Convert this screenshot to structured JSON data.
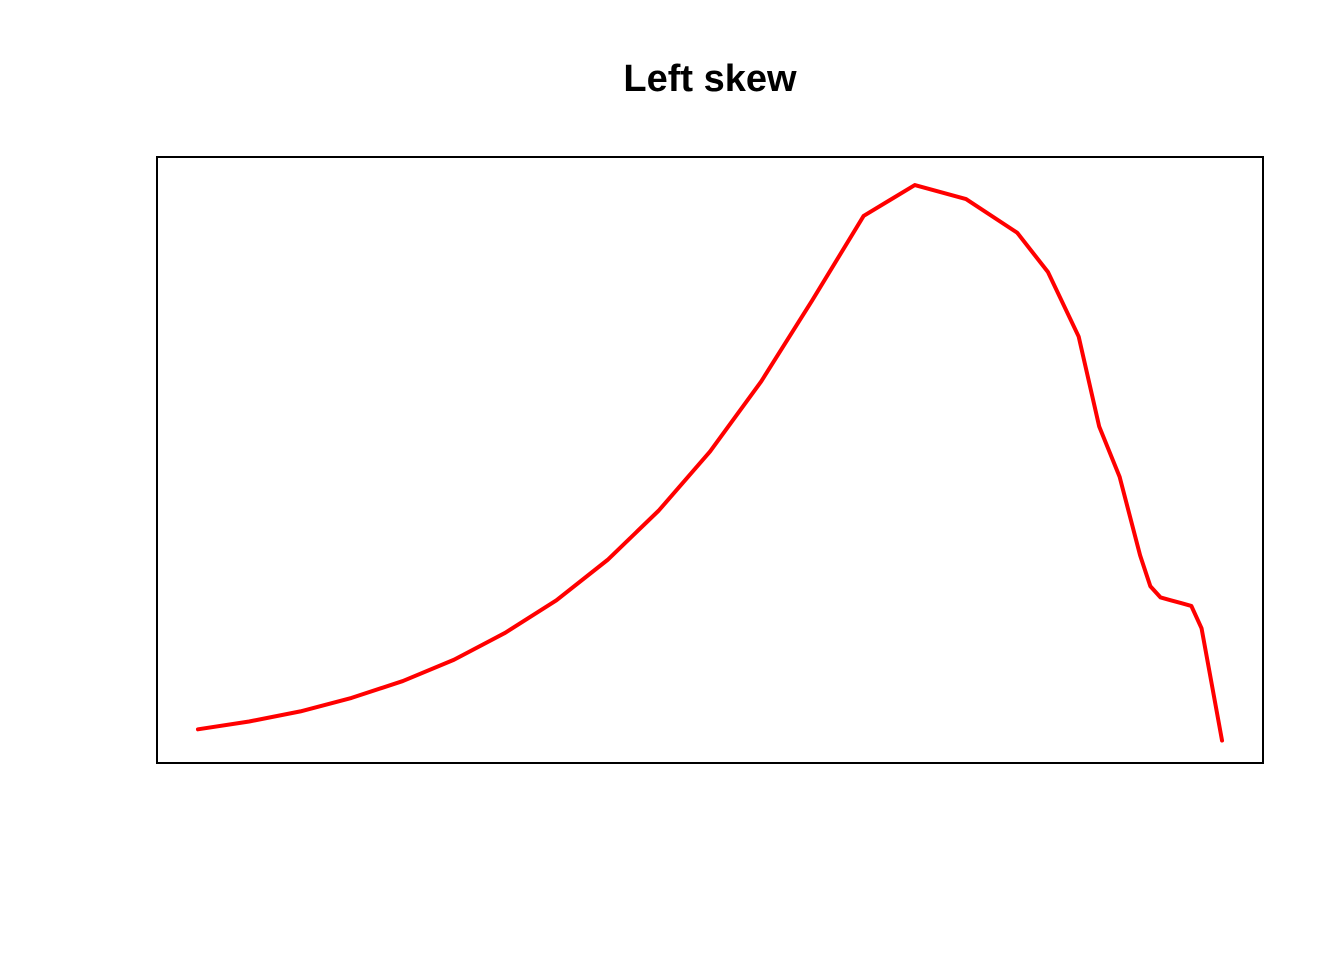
{
  "chart_data": {
    "type": "line",
    "title": "Left skew",
    "xlabel": "",
    "ylabel": "",
    "axes_visible": false,
    "grid": false,
    "legend": "none",
    "frame": true,
    "xlim": [
      -0.04,
      1.04
    ],
    "ylim": [
      -0.04,
      1.04
    ],
    "series": [
      {
        "color": "#ff0000",
        "x": [
          0.0,
          0.05,
          0.1,
          0.15,
          0.2,
          0.25,
          0.3,
          0.35,
          0.4,
          0.45,
          0.5,
          0.55,
          0.6,
          0.65,
          0.7,
          0.75,
          0.8,
          0.83,
          0.86,
          0.88,
          0.9,
          0.91,
          0.92,
          0.93,
          0.94,
          0.95,
          0.96,
          0.97,
          0.98,
          0.99,
          1.0
        ],
        "y": [
          0.02,
          0.034,
          0.052,
          0.076,
          0.106,
          0.144,
          0.192,
          0.25,
          0.322,
          0.41,
          0.515,
          0.64,
          0.785,
          0.935,
          0.99,
          0.965,
          0.905,
          0.835,
          0.72,
          0.56,
          0.47,
          0.4,
          0.33,
          0.275,
          0.255,
          0.25,
          0.245,
          0.24,
          0.2,
          0.1,
          0.0
        ]
      }
    ]
  }
}
